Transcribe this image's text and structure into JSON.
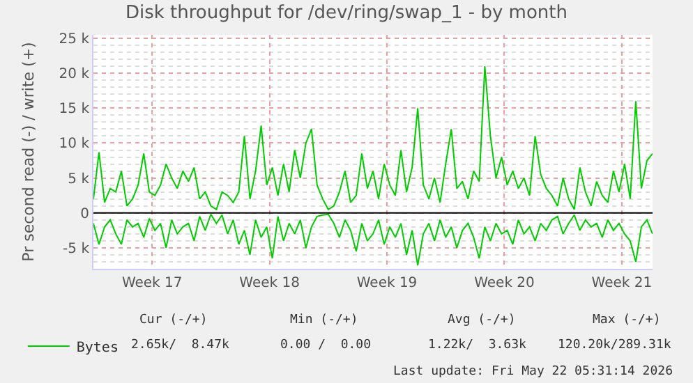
{
  "chart_data": {
    "type": "line",
    "title": "Disk throughput for /dev/ring/swap_1 - by month",
    "ylabel": "Pr second read (-) / write (+)",
    "x": [
      "2026-04-20T00:00",
      "2026-04-20T08:00",
      "2026-04-20T16:00",
      "2026-04-21T00:00",
      "2026-04-21T08:00",
      "2026-04-21T16:00",
      "2026-04-22T00:00",
      "2026-04-22T08:00",
      "2026-04-22T16:00",
      "2026-04-23T00:00",
      "2026-04-23T08:00",
      "2026-04-23T16:00",
      "2026-04-24T00:00",
      "2026-04-24T08:00",
      "2026-04-24T16:00",
      "2026-04-25T00:00",
      "2026-04-25T08:00",
      "2026-04-25T16:00",
      "2026-04-26T00:00",
      "2026-04-26T08:00",
      "2026-04-26T16:00",
      "2026-04-27T00:00",
      "2026-04-27T08:00",
      "2026-04-27T16:00",
      "2026-04-28T00:00",
      "2026-04-28T08:00",
      "2026-04-28T16:00",
      "2026-04-29T00:00",
      "2026-04-29T08:00",
      "2026-04-29T16:00",
      "2026-04-30T00:00",
      "2026-04-30T08:00",
      "2026-04-30T16:00",
      "2026-05-01T00:00",
      "2026-05-01T08:00",
      "2026-05-01T16:00",
      "2026-05-02T00:00",
      "2026-05-02T08:00",
      "2026-05-02T16:00",
      "2026-05-03T00:00",
      "2026-05-03T08:00",
      "2026-05-03T16:00",
      "2026-05-04T00:00",
      "2026-05-04T08:00",
      "2026-05-04T16:00",
      "2026-05-05T00:00",
      "2026-05-05T08:00",
      "2026-05-05T16:00",
      "2026-05-06T00:00",
      "2026-05-06T08:00",
      "2026-05-06T16:00",
      "2026-05-07T00:00",
      "2026-05-07T08:00",
      "2026-05-07T16:00",
      "2026-05-08T00:00",
      "2026-05-08T08:00",
      "2026-05-08T16:00",
      "2026-05-09T00:00",
      "2026-05-09T08:00",
      "2026-05-09T16:00",
      "2026-05-10T00:00",
      "2026-05-10T08:00",
      "2026-05-10T16:00",
      "2026-05-11T00:00",
      "2026-05-11T08:00",
      "2026-05-11T16:00",
      "2026-05-12T00:00",
      "2026-05-12T08:00",
      "2026-05-12T16:00",
      "2026-05-13T00:00",
      "2026-05-13T08:00",
      "2026-05-13T16:00",
      "2026-05-14T00:00",
      "2026-05-14T08:00",
      "2026-05-14T16:00",
      "2026-05-15T00:00",
      "2026-05-15T08:00",
      "2026-05-15T16:00",
      "2026-05-16T00:00",
      "2026-05-16T08:00",
      "2026-05-16T16:00",
      "2026-05-17T00:00",
      "2026-05-17T08:00",
      "2026-05-17T16:00",
      "2026-05-18T00:00",
      "2026-05-18T08:00",
      "2026-05-18T16:00",
      "2026-05-19T00:00",
      "2026-05-19T08:00",
      "2026-05-19T16:00",
      "2026-05-20T00:00",
      "2026-05-20T08:00",
      "2026-05-20T16:00",
      "2026-05-21T00:00",
      "2026-05-21T08:00",
      "2026-05-21T16:00",
      "2026-05-22T00:00",
      "2026-05-22T08:00",
      "2026-05-22T16:00",
      "2026-05-23T00:00",
      "2026-05-23T08:00"
    ],
    "series": [
      {
        "name": "Bytes",
        "color": "#00cc00",
        "values": [
          2000,
          8700,
          1500,
          3500,
          3000,
          6000,
          1000,
          2000,
          4000,
          8500,
          3000,
          2500,
          4000,
          7000,
          5000,
          3500,
          6000,
          4500,
          6500,
          2000,
          3000,
          1000,
          500,
          3000,
          2500,
          1500,
          3000,
          11000,
          2000,
          6000,
          12500,
          4000,
          6500,
          2500,
          7000,
          3000,
          9000,
          5000,
          10000,
          12000,
          4000,
          2000,
          500,
          1000,
          3000,
          6000,
          1500,
          2500,
          8500,
          3500,
          6000,
          2000,
          7000,
          4000,
          2500,
          9000,
          3000,
          6500,
          15000,
          4000,
          2000,
          5000,
          1500,
          7000,
          12000,
          3500,
          4500,
          2000,
          6000,
          4500,
          21000,
          11000,
          5000,
          8000,
          4000,
          6000,
          3500,
          5000,
          2500,
          11000,
          5500,
          3500,
          2500,
          1000,
          5000,
          2000,
          500,
          6500,
          3000,
          1000,
          4500,
          2500,
          1500,
          6000,
          3000,
          7000,
          2000,
          16000,
          3500,
          7500,
          8500
        ]
      },
      {
        "color": "#00cc00",
        "values": [
          -1500,
          -4500,
          -2000,
          -1000,
          -3000,
          -4500,
          -1000,
          -2000,
          -1500,
          -3500,
          -800,
          -2500,
          -1500,
          -5000,
          -1000,
          -3000,
          -2000,
          -1500,
          -4000,
          -500,
          -2500,
          -200,
          -1500,
          -300,
          -3000,
          -1000,
          -4500,
          -2500,
          -6000,
          -1000,
          -3500,
          -2000,
          -6500,
          -500,
          -4000,
          -1500,
          -3000,
          -1000,
          -5000,
          -2000,
          -500,
          -300,
          -200,
          -1500,
          -3500,
          -1000,
          -2500,
          -5500,
          -1500,
          -4000,
          -3000,
          -1000,
          -4500,
          -2000,
          -3500,
          -1500,
          -6000,
          -2500,
          -7500,
          -3000,
          -1500,
          -4000,
          -1000,
          -3500,
          -2000,
          -5000,
          -2500,
          -1500,
          -3500,
          -6500,
          -2000,
          -4000,
          -1500,
          -3000,
          -2500,
          -4500,
          -1000,
          -3000,
          -2000,
          -4000,
          -1500,
          -2500,
          -1000,
          -500,
          -3000,
          -1500,
          -300,
          -2500,
          -1000,
          -2000,
          -1500,
          -3500,
          -1000,
          -2500,
          -1500,
          -3000,
          -4000,
          -7000,
          -2000,
          -1000,
          -3000
        ]
      }
    ],
    "xlim": [
      "2026-04-20T00:00",
      "2026-05-23T08:00"
    ],
    "xticks": [
      {
        "value": "2026-04-23T12:00",
        "label": "Week 17"
      },
      {
        "value": "2026-04-30T12:00",
        "label": "Week 18"
      },
      {
        "value": "2026-05-07T12:00",
        "label": "Week 19"
      },
      {
        "value": "2026-05-14T12:00",
        "label": "Week 20"
      },
      {
        "value": "2026-05-21T12:00",
        "label": "Week 21"
      }
    ],
    "ylim": [
      -8000,
      25500
    ],
    "yticks": [
      {
        "value": -5000,
        "label": "-5 k"
      },
      0,
      {
        "value": 5000,
        "label": "5 k"
      },
      {
        "value": 10000,
        "label": "10 k"
      },
      {
        "value": 15000,
        "label": "15 k"
      },
      {
        "value": 20000,
        "label": "20 k"
      },
      {
        "value": 25000,
        "label": "25 k"
      }
    ],
    "ref_lines": [
      {
        "axis": "y",
        "value": 0,
        "color": "#000000"
      }
    ],
    "grid": true,
    "legend": "bottom left",
    "annotations": [
      "Cur (-/+)",
      "Min (-/+)",
      "Avg (-/+)",
      "Max (-/+)",
      "2.65k/  8.47k",
      "0.00 /  0.00",
      "1.22k/  3.63k",
      "120.20k/289.31k",
      "Last update: Fri May 22 05:31:14 2026"
    ]
  }
}
